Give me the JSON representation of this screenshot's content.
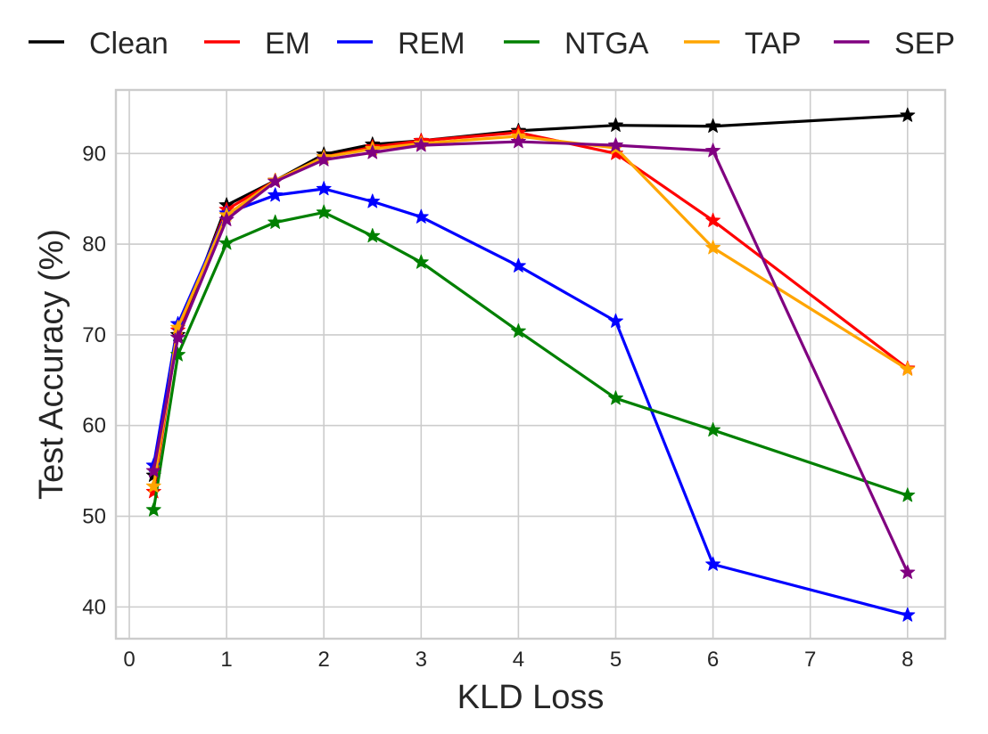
{
  "chart_data": {
    "type": "line",
    "title": "",
    "xlabel": "KLD Loss",
    "ylabel": "Test Accuracy (%)",
    "x": [
      "0.25",
      "0.5",
      "1",
      "1.5",
      "2",
      "2.5",
      "3",
      "4",
      "5",
      "6",
      "8"
    ],
    "x_tick_labels": [
      "0",
      "1",
      "2",
      "3",
      "4",
      "5",
      "6",
      "7",
      "8"
    ],
    "y_ticks": [
      40,
      50,
      60,
      70,
      80,
      90
    ],
    "ylim": [
      36.5,
      97
    ],
    "grid": true,
    "legend_position": "top",
    "marker": "star",
    "series": [
      {
        "name": "Clean",
        "color": "#000000",
        "values": [
          54.5,
          70.0,
          84.3,
          87.0,
          89.9,
          91.0,
          91.4,
          92.5,
          93.1,
          93.0,
          94.2
        ]
      },
      {
        "name": "EM",
        "color": "#ff0000",
        "values": [
          52.7,
          70.5,
          83.8,
          87.0,
          89.6,
          90.7,
          91.4,
          92.3,
          90.0,
          82.6,
          66.3
        ]
      },
      {
        "name": "REM",
        "color": "#0000ff",
        "values": [
          55.6,
          71.2,
          83.4,
          85.4,
          86.1,
          84.7,
          83.0,
          77.6,
          71.5,
          44.7,
          39.1
        ]
      },
      {
        "name": "NTGA",
        "color": "#008000",
        "values": [
          50.7,
          67.8,
          80.1,
          82.4,
          83.5,
          80.9,
          78.0,
          70.4,
          63.0,
          59.5,
          52.3
        ]
      },
      {
        "name": "TAP",
        "color": "#ffa500",
        "values": [
          53.3,
          70.8,
          83.2,
          87.0,
          89.6,
          90.5,
          91.1,
          91.9,
          90.6,
          79.6,
          66.2
        ]
      },
      {
        "name": "SEP",
        "color": "#800080",
        "values": [
          55.0,
          69.7,
          82.7,
          86.9,
          89.3,
          90.1,
          90.9,
          91.3,
          90.9,
          90.3,
          43.8
        ]
      }
    ]
  }
}
